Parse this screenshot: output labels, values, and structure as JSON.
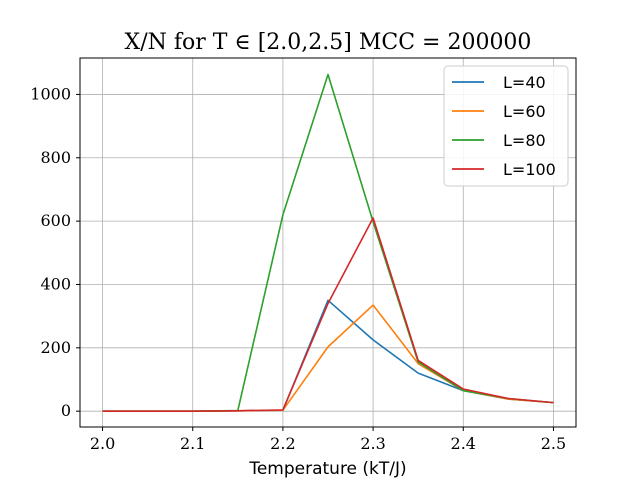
{
  "chart_data": {
    "type": "line",
    "title": "X/N for T ∈ [2.0,2.5] MCC = 200000",
    "xlabel": "Temperature (kT/J)",
    "ylabel": "",
    "x": [
      2.0,
      2.05,
      2.1,
      2.15,
      2.2,
      2.25,
      2.3,
      2.35,
      2.4,
      2.45,
      2.5
    ],
    "xlim": [
      1.975,
      2.525
    ],
    "ylim": [
      -50,
      1115
    ],
    "xticks": [
      "2.0",
      "2.1",
      "2.2",
      "2.3",
      "2.4",
      "2.5"
    ],
    "xtick_values": [
      2.0,
      2.1,
      2.2,
      2.3,
      2.4,
      2.5
    ],
    "yticks": [
      "0",
      "200",
      "400",
      "600",
      "800",
      "1000"
    ],
    "ytick_values": [
      0,
      200,
      400,
      600,
      800,
      1000
    ],
    "grid": true,
    "legend_position": "top-right",
    "series": [
      {
        "name": "L=40",
        "color": "#1f77b4",
        "values": [
          0,
          0,
          0,
          1,
          3,
          350,
          225,
          120,
          65,
          38,
          27
        ]
      },
      {
        "name": "L=60",
        "color": "#ff7f0e",
        "values": [
          0,
          0,
          0,
          1,
          3,
          203,
          335,
          150,
          65,
          38,
          27
        ]
      },
      {
        "name": "L=80",
        "color": "#2ca02c",
        "values": [
          0,
          0,
          0,
          2,
          620,
          1063,
          598,
          155,
          65,
          40,
          27
        ]
      },
      {
        "name": "L=100",
        "color": "#d62728",
        "values": [
          0,
          0,
          0,
          1,
          4,
          340,
          610,
          160,
          70,
          40,
          27
        ]
      }
    ]
  }
}
